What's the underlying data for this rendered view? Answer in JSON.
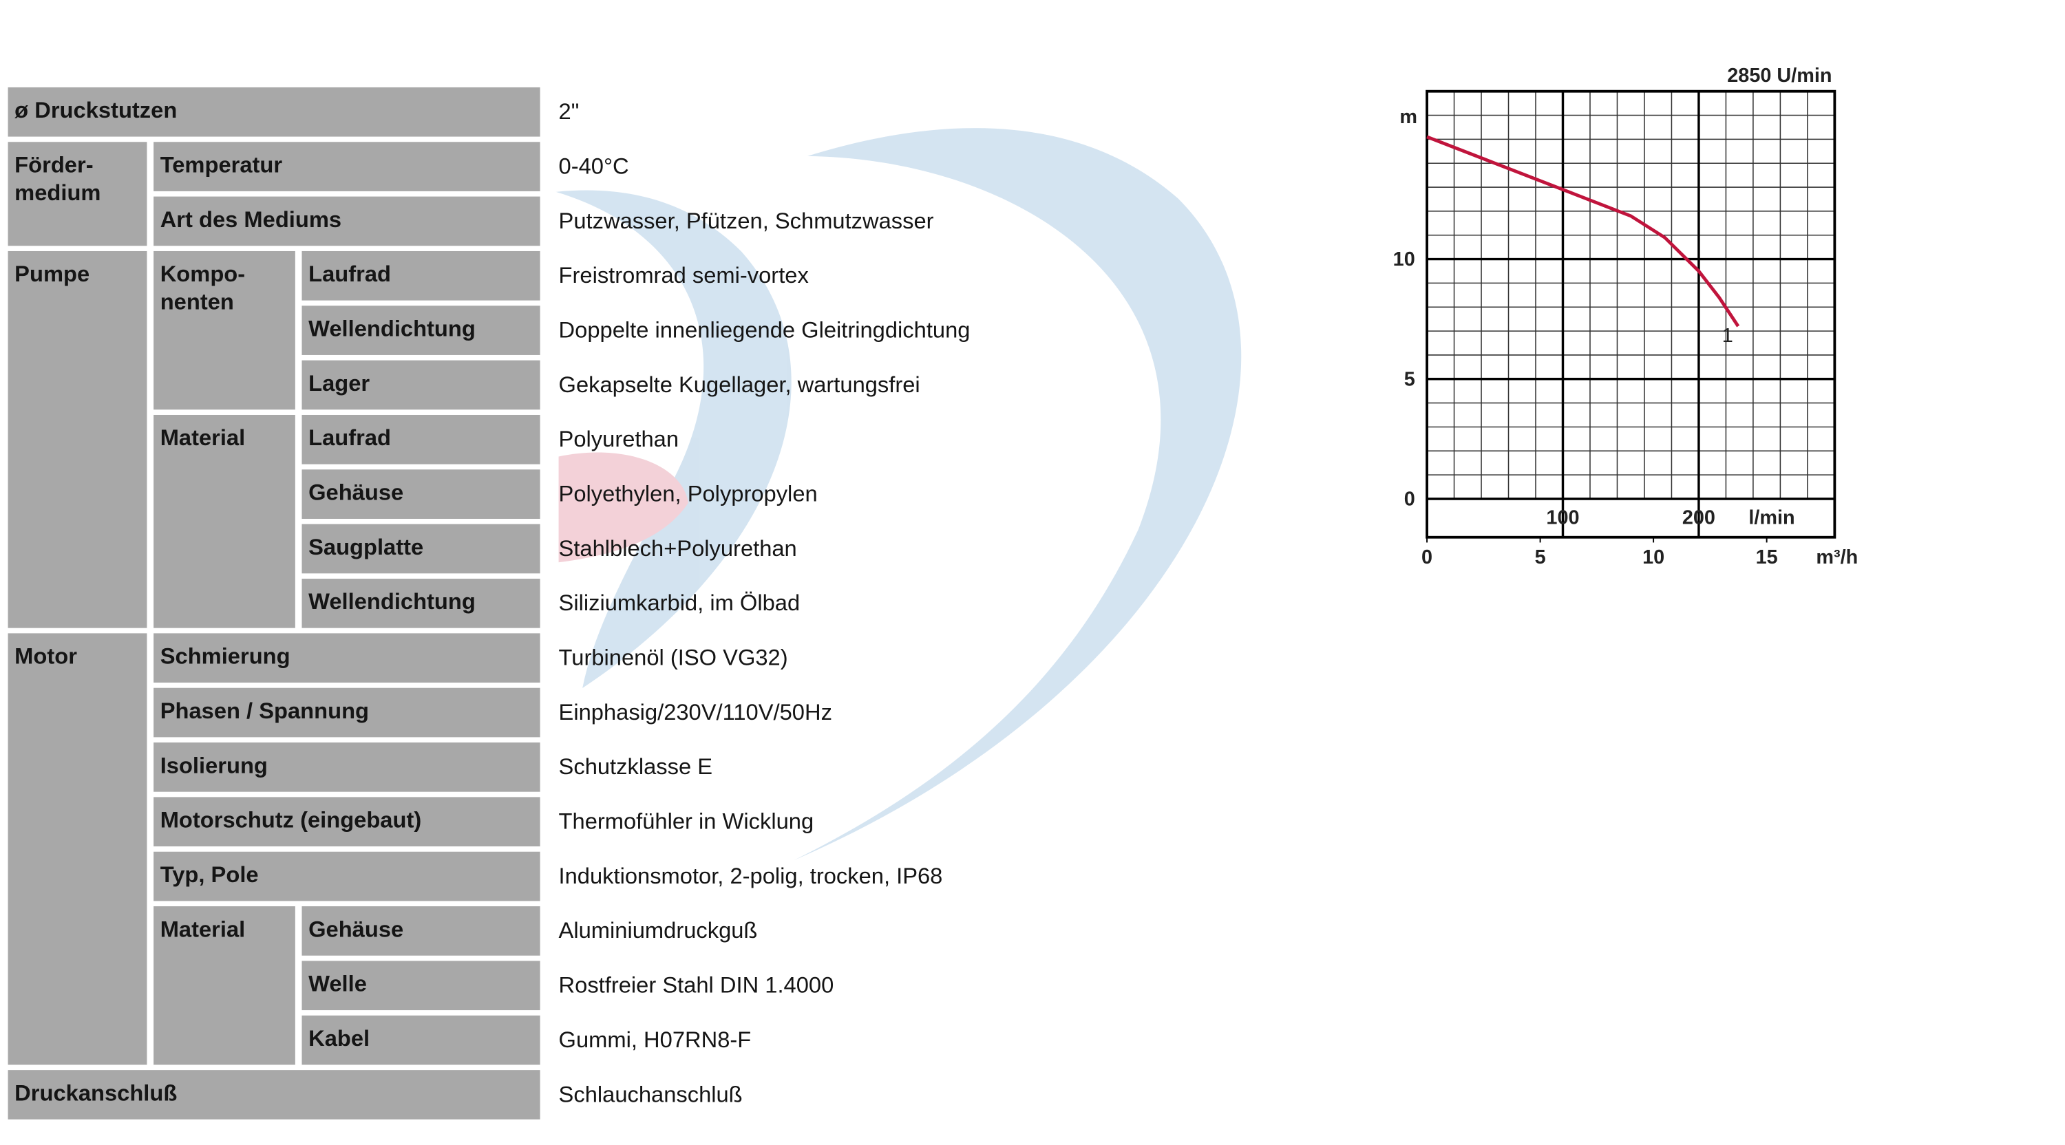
{
  "table": {
    "rows": [
      {
        "label": "ø Druckstutzen",
        "value": "2\""
      },
      {
        "label": "Förder-\nmedium",
        "rows": [
          {
            "label": "Temperatur",
            "value": "0-40°C"
          },
          {
            "label": "Art des Mediums",
            "value": "Putzwasser, Pfützen, Schmutzwasser"
          }
        ]
      },
      {
        "label": "Pumpe",
        "rows": [
          {
            "label": "Kompo-\nnenten",
            "rows": [
              {
                "label": "Laufrad",
                "value": "Freistromrad semi-vortex"
              },
              {
                "label": "Wellendichtung",
                "value": "Doppelte innenliegende Gleitringdichtung"
              },
              {
                "label": "Lager",
                "value": "Gekapselte Kugellager, wartungsfrei"
              }
            ]
          },
          {
            "label": "Material",
            "rows": [
              {
                "label": "Laufrad",
                "value": "Polyurethan"
              },
              {
                "label": "Gehäuse",
                "value": "Polyethylen, Polypropylen"
              },
              {
                "label": "Saugplatte",
                "value": "Stahlblech+Polyurethan"
              },
              {
                "label": "Wellendichtung",
                "value": "Siliziumkarbid, im Ölbad"
              }
            ]
          }
        ]
      },
      {
        "label": "Motor",
        "rows": [
          {
            "label": "Schmierung",
            "value": "Turbinenöl (ISO VG32)"
          },
          {
            "label": "Phasen / Spannung",
            "value": "Einphasig/230V/110V/50Hz"
          },
          {
            "label": "Isolierung",
            "value": "Schutzklasse E"
          },
          {
            "label": "Motorschutz (eingebaut)",
            "value": "Thermofühler in Wicklung"
          },
          {
            "label": "Typ, Pole",
            "value": "Induktionsmotor, 2-polig, trocken, IP68"
          },
          {
            "label": "Material",
            "rows": [
              {
                "label": "Gehäuse",
                "value": "Aluminiumdruckguß"
              },
              {
                "label": "Welle",
                "value": "Rostfreier Stahl DIN 1.4000"
              },
              {
                "label": "Kabel",
                "value": "Gummi, H07RN8-F"
              }
            ]
          }
        ]
      },
      {
        "label": "Druckanschluß",
        "value": "Schlauchanschluß"
      }
    ]
  },
  "chart_data": {
    "type": "line",
    "title": "2850 U/min",
    "y_label": "m",
    "x_label": "l/min",
    "x2_label": "m³/h",
    "xlim": [
      0,
      300
    ],
    "xticks": [
      100,
      200
    ],
    "ylim": [
      0,
      17
    ],
    "yticks": [
      0,
      5,
      10
    ],
    "x2lim": [
      0,
      18
    ],
    "x2ticks": [
      0,
      5,
      10,
      15
    ],
    "grid": true,
    "series": [
      {
        "name": "1",
        "color": "#c0143c",
        "x": [
          0,
          50,
          100,
          150,
          175,
          200,
          215,
          229
        ],
        "values": [
          15.1,
          14.0,
          12.9,
          11.8,
          10.9,
          9.5,
          8.4,
          7.2
        ]
      }
    ]
  }
}
